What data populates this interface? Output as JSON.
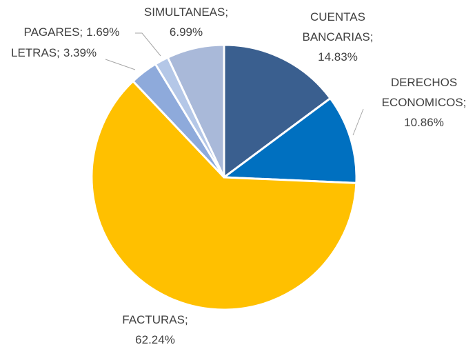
{
  "chart_data": {
    "type": "pie",
    "categories": [
      "CUENTAS BANCARIAS;",
      "DERECHOS ECONOMICOS;",
      "FACTURAS;",
      "LETRAS;",
      "PAGARES;",
      "SIMULTANEAS;"
    ],
    "values": [
      14.83,
      10.86,
      62.24,
      3.39,
      1.69,
      6.99
    ],
    "value_labels": [
      "14.83%",
      "10.86%",
      "62.24%",
      "3.39%",
      "1.69%",
      "6.99%"
    ],
    "colors": [
      "#3a5f8f",
      "#0070c0",
      "#ffc000",
      "#8eaadb",
      "#b4c7e7",
      "#a9b9d9"
    ]
  }
}
